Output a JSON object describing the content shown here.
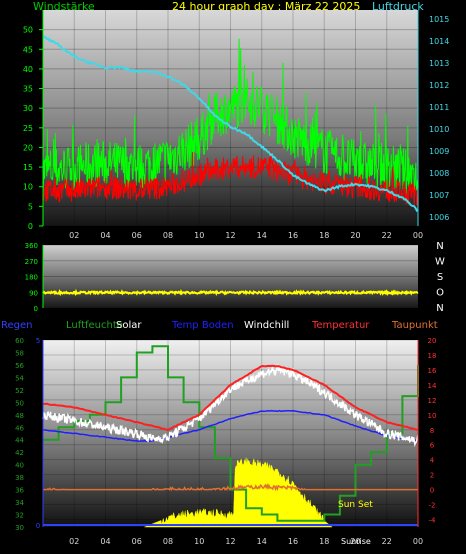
{
  "top": {
    "title": "24 hour graph day : März 22 2025",
    "left_axis_label": "Windstärke",
    "right_axis_label": "Luftdruck"
  },
  "colors": {
    "wind_gust": "#00ff00",
    "wind_avg": "#ff0000",
    "pressure": "#40d8e8",
    "direction": "#ffff00",
    "humidity": "#20a020",
    "solar": "#ffff00",
    "temp_ground": "#2020ff",
    "windchill": "#ffffff",
    "temperature": "#ff2020",
    "dewpoint": "#e07030",
    "regen": "#3040ff"
  },
  "legend": {
    "regen": "Regen",
    "humidity": "Luftfeuchte",
    "solar": "Solar",
    "temp_ground": "Temp Boden",
    "windchill": "Windchill",
    "temperature": "Temperatur",
    "dewpoint": "Taupunkt"
  },
  "sun": {
    "sunset": "Sun Set",
    "sunrise": "Sunrise"
  },
  "chart_data": [
    {
      "type": "line",
      "title": "24 hour graph day : März 22 2025",
      "ylabel": "Windstärke",
      "y2label": "Luftdruck",
      "ylim": [
        0,
        55
      ],
      "y2lim": [
        1005.6,
        1015.4
      ],
      "yticks": [
        "0",
        "5",
        "10",
        "15",
        "20",
        "25",
        "30",
        "35",
        "40",
        "45",
        "50"
      ],
      "y2ticks": [
        "1006",
        "1007",
        "1008",
        "1009",
        "1010",
        "1011",
        "1012",
        "1013",
        "1014",
        "1015"
      ],
      "xticks": [
        "02",
        "04",
        "06",
        "08",
        "10",
        "12",
        "14",
        "16",
        "18",
        "20",
        "22",
        "00"
      ],
      "xlim": [
        0,
        24
      ],
      "series": [
        {
          "name": "Windstärke",
          "axis": "left",
          "x": [
            0,
            2,
            4,
            6,
            8,
            10,
            11,
            12,
            13,
            14,
            15,
            16,
            18,
            20,
            22,
            23,
            24
          ],
          "values": [
            14,
            15,
            16,
            15,
            17,
            22,
            28,
            30,
            32,
            30,
            27,
            23,
            19,
            16,
            15,
            14,
            13
          ]
        },
        {
          "axis": "left",
          "x": [
            0,
            2,
            4,
            6,
            8,
            10,
            12,
            14,
            16,
            18,
            20,
            22,
            24
          ],
          "values": [
            9,
            9,
            10,
            9,
            10,
            13,
            15,
            15,
            13,
            11,
            10,
            9,
            8
          ]
        },
        {
          "name": "Luftdruck",
          "axis": "right",
          "x": [
            0,
            1,
            2,
            3,
            4,
            5,
            6,
            7,
            8,
            9,
            10,
            11,
            12,
            13,
            14,
            15,
            16,
            17,
            18,
            19,
            20,
            21,
            22,
            23,
            24
          ],
          "values": [
            1014.2,
            1013.8,
            1013.3,
            1013.0,
            1012.8,
            1012.8,
            1012.6,
            1012.6,
            1012.4,
            1012.0,
            1011.4,
            1010.6,
            1010.1,
            1009.8,
            1009.2,
            1008.6,
            1007.9,
            1007.5,
            1007.2,
            1007.4,
            1007.5,
            1007.4,
            1007.2,
            1006.9,
            1006.3
          ]
        }
      ]
    },
    {
      "type": "line",
      "ylim": [
        0,
        360
      ],
      "yticks": [
        "0",
        "90",
        "180",
        "270",
        "360"
      ],
      "right_labels": [
        "N",
        "W",
        "S",
        "O",
        "N"
      ],
      "xlim": [
        0,
        24
      ],
      "series": [
        {
          "axis": "left",
          "x": [
            0,
            6,
            12,
            18,
            24
          ],
          "values": [
            88,
            88,
            88,
            88,
            88
          ]
        }
      ]
    },
    {
      "type": "line",
      "ylim": [
        30,
        60
      ],
      "y2lim": [
        -5,
        20
      ],
      "yticks": [
        "30",
        "32",
        "34",
        "36",
        "38",
        "40",
        "42",
        "44",
        "46",
        "48",
        "50",
        "52",
        "54",
        "56",
        "58",
        "60"
      ],
      "y2ticks": [
        "-4",
        "-2",
        "0",
        "2",
        "4",
        "6",
        "8",
        "10",
        "12",
        "14",
        "16",
        "18",
        "20"
      ],
      "xticks": [
        "02",
        "04",
        "06",
        "08",
        "10",
        "12",
        "14",
        "16",
        "18",
        "20",
        "22",
        "00"
      ],
      "xlim": [
        0,
        24
      ],
      "series": [
        {
          "name": "Luftfeuchte",
          "axis": "left",
          "x": [
            0,
            1,
            2,
            3,
            4,
            5,
            6,
            7,
            8,
            9,
            10,
            11,
            12,
            13,
            14,
            15,
            16,
            17,
            18,
            19,
            20,
            21,
            22,
            23,
            24
          ],
          "values": [
            44,
            46,
            47,
            48,
            50,
            54,
            58,
            59,
            54,
            50,
            46,
            41,
            36,
            33,
            32,
            31,
            31,
            31,
            32,
            35,
            40,
            42,
            45,
            51,
            56
          ]
        },
        {
          "name": "Temperatur",
          "axis": "right",
          "x": [
            0,
            2,
            4,
            6,
            7,
            8,
            10,
            12,
            14,
            15,
            16,
            18,
            20,
            22,
            24
          ],
          "values": [
            11.5,
            11,
            10,
            9,
            8.5,
            8,
            10,
            14,
            16.5,
            16.5,
            16,
            14,
            11,
            9,
            8
          ]
        },
        {
          "name": "Windchill",
          "axis": "right",
          "x": [
            0,
            2,
            4,
            6,
            7,
            8,
            10,
            12,
            14,
            15,
            16,
            18,
            20,
            22,
            24
          ],
          "values": [
            10,
            9.2,
            8.3,
            7.5,
            6.8,
            7,
            9.5,
            13.5,
            15.5,
            16,
            15.5,
            13,
            10,
            7.5,
            6.5
          ]
        },
        {
          "name": "Temp Boden",
          "axis": "right",
          "x": [
            0,
            2,
            4,
            6,
            7,
            8,
            10,
            12,
            14,
            16,
            18,
            20,
            22,
            24
          ],
          "values": [
            8,
            7.5,
            7,
            6.5,
            6.5,
            7,
            8,
            9.5,
            10.5,
            10.5,
            10,
            8.5,
            7.2,
            6.5
          ]
        },
        {
          "name": "Taupunkt",
          "axis": "right",
          "x": [
            0,
            2,
            4,
            6,
            8,
            10,
            12,
            14,
            16,
            18,
            20,
            22,
            24
          ],
          "values": [
            0,
            -0.3,
            -0.3,
            -0.2,
            0,
            0,
            0.2,
            0.4,
            0.2,
            -0.6,
            -0.2,
            -0.5,
            -0.3
          ]
        },
        {
          "name": "Solar",
          "type": "area",
          "axis": "left",
          "x": [
            6.5,
            7,
            8,
            9,
            10,
            11,
            12,
            12.2,
            12.3,
            13,
            14,
            15,
            16,
            17,
            18,
            18.5
          ],
          "values": [
            30,
            30.5,
            31.5,
            32,
            32.3,
            32.2,
            32,
            32,
            40,
            40.5,
            40,
            39,
            37,
            34,
            31,
            30
          ]
        }
      ]
    }
  ]
}
